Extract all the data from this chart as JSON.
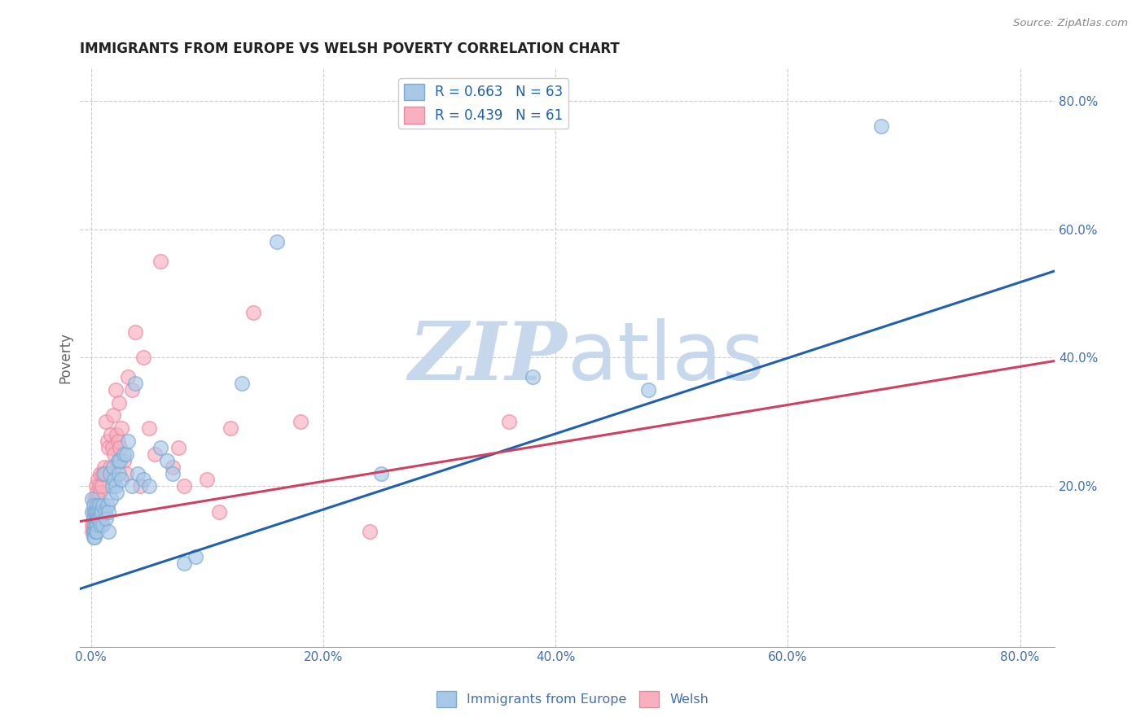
{
  "title": "IMMIGRANTS FROM EUROPE VS WELSH POVERTY CORRELATION CHART",
  "source": "Source: ZipAtlas.com",
  "ylabel": "Poverty",
  "ytick_vals": [
    0.2,
    0.4,
    0.6,
    0.8
  ],
  "ytick_labels": [
    "20.0%",
    "40.0%",
    "60.0%",
    "80.0%"
  ],
  "xtick_vals": [
    0.0,
    0.2,
    0.4,
    0.6,
    0.8
  ],
  "xtick_labels": [
    "0.0%",
    "20.0%",
    "40.0%",
    "60.0%",
    "80.0%"
  ],
  "xlim": [
    -0.01,
    0.83
  ],
  "ylim": [
    -0.05,
    0.85
  ],
  "legend_label1": "Immigrants from Europe",
  "legend_label2": "Welsh",
  "legend_r1": "R = 0.663",
  "legend_n1": "N = 63",
  "legend_r2": "R = 0.439",
  "legend_n2": "N = 61",
  "blue_scatter": [
    [
      0.001,
      0.18
    ],
    [
      0.001,
      0.16
    ],
    [
      0.002,
      0.17
    ],
    [
      0.002,
      0.15
    ],
    [
      0.002,
      0.13
    ],
    [
      0.002,
      0.12
    ],
    [
      0.003,
      0.16
    ],
    [
      0.003,
      0.14
    ],
    [
      0.003,
      0.13
    ],
    [
      0.003,
      0.12
    ],
    [
      0.004,
      0.16
    ],
    [
      0.004,
      0.15
    ],
    [
      0.004,
      0.14
    ],
    [
      0.004,
      0.13
    ],
    [
      0.005,
      0.17
    ],
    [
      0.005,
      0.15
    ],
    [
      0.005,
      0.14
    ],
    [
      0.005,
      0.13
    ],
    [
      0.006,
      0.16
    ],
    [
      0.006,
      0.15
    ],
    [
      0.007,
      0.17
    ],
    [
      0.007,
      0.15
    ],
    [
      0.008,
      0.16
    ],
    [
      0.008,
      0.14
    ],
    [
      0.009,
      0.16
    ],
    [
      0.01,
      0.17
    ],
    [
      0.01,
      0.14
    ],
    [
      0.011,
      0.22
    ],
    [
      0.012,
      0.16
    ],
    [
      0.013,
      0.15
    ],
    [
      0.014,
      0.17
    ],
    [
      0.015,
      0.16
    ],
    [
      0.015,
      0.13
    ],
    [
      0.016,
      0.22
    ],
    [
      0.017,
      0.18
    ],
    [
      0.018,
      0.2
    ],
    [
      0.019,
      0.23
    ],
    [
      0.02,
      0.21
    ],
    [
      0.021,
      0.2
    ],
    [
      0.022,
      0.19
    ],
    [
      0.023,
      0.24
    ],
    [
      0.024,
      0.22
    ],
    [
      0.025,
      0.24
    ],
    [
      0.026,
      0.21
    ],
    [
      0.028,
      0.25
    ],
    [
      0.03,
      0.25
    ],
    [
      0.032,
      0.27
    ],
    [
      0.035,
      0.2
    ],
    [
      0.038,
      0.36
    ],
    [
      0.04,
      0.22
    ],
    [
      0.045,
      0.21
    ],
    [
      0.05,
      0.2
    ],
    [
      0.06,
      0.26
    ],
    [
      0.065,
      0.24
    ],
    [
      0.07,
      0.22
    ],
    [
      0.08,
      0.08
    ],
    [
      0.09,
      0.09
    ],
    [
      0.13,
      0.36
    ],
    [
      0.16,
      0.58
    ],
    [
      0.25,
      0.22
    ],
    [
      0.38,
      0.37
    ],
    [
      0.48,
      0.35
    ],
    [
      0.68,
      0.76
    ]
  ],
  "pink_scatter": [
    [
      0.001,
      0.14
    ],
    [
      0.001,
      0.13
    ],
    [
      0.002,
      0.16
    ],
    [
      0.002,
      0.15
    ],
    [
      0.002,
      0.14
    ],
    [
      0.002,
      0.13
    ],
    [
      0.003,
      0.18
    ],
    [
      0.003,
      0.16
    ],
    [
      0.003,
      0.15
    ],
    [
      0.003,
      0.13
    ],
    [
      0.004,
      0.2
    ],
    [
      0.004,
      0.18
    ],
    [
      0.004,
      0.16
    ],
    [
      0.004,
      0.14
    ],
    [
      0.005,
      0.19
    ],
    [
      0.005,
      0.17
    ],
    [
      0.005,
      0.16
    ],
    [
      0.006,
      0.21
    ],
    [
      0.006,
      0.18
    ],
    [
      0.007,
      0.2
    ],
    [
      0.007,
      0.17
    ],
    [
      0.008,
      0.22
    ],
    [
      0.008,
      0.19
    ],
    [
      0.009,
      0.2
    ],
    [
      0.01,
      0.22
    ],
    [
      0.011,
      0.23
    ],
    [
      0.012,
      0.22
    ],
    [
      0.013,
      0.3
    ],
    [
      0.014,
      0.27
    ],
    [
      0.015,
      0.26
    ],
    [
      0.016,
      0.23
    ],
    [
      0.017,
      0.28
    ],
    [
      0.018,
      0.26
    ],
    [
      0.019,
      0.31
    ],
    [
      0.02,
      0.25
    ],
    [
      0.021,
      0.35
    ],
    [
      0.022,
      0.28
    ],
    [
      0.023,
      0.27
    ],
    [
      0.024,
      0.33
    ],
    [
      0.025,
      0.26
    ],
    [
      0.026,
      0.29
    ],
    [
      0.028,
      0.24
    ],
    [
      0.03,
      0.22
    ],
    [
      0.032,
      0.37
    ],
    [
      0.035,
      0.35
    ],
    [
      0.038,
      0.44
    ],
    [
      0.042,
      0.2
    ],
    [
      0.045,
      0.4
    ],
    [
      0.05,
      0.29
    ],
    [
      0.055,
      0.25
    ],
    [
      0.06,
      0.55
    ],
    [
      0.07,
      0.23
    ],
    [
      0.075,
      0.26
    ],
    [
      0.08,
      0.2
    ],
    [
      0.1,
      0.21
    ],
    [
      0.11,
      0.16
    ],
    [
      0.12,
      0.29
    ],
    [
      0.14,
      0.47
    ],
    [
      0.18,
      0.3
    ],
    [
      0.24,
      0.13
    ],
    [
      0.36,
      0.3
    ]
  ],
  "blue_line_x": [
    -0.01,
    0.83
  ],
  "blue_line_y": [
    0.04,
    0.535
  ],
  "pink_line_x": [
    -0.01,
    0.83
  ],
  "pink_line_y": [
    0.145,
    0.395
  ],
  "scatter_size": 160,
  "blue_color": "#a8c8e8",
  "pink_color": "#f8b0c0",
  "blue_edge": "#7aaad0",
  "pink_edge": "#e888a0",
  "blue_line_color": "#2060b0",
  "pink_line_color": "#d04060",
  "grid_color": "#cccccc",
  "bg_color": "#ffffff",
  "watermark_zip": "ZIP",
  "watermark_atlas": "atlas",
  "watermark_color": "#c8d8ec",
  "title_color": "#222222",
  "axis_tick_color": "#4070b0"
}
